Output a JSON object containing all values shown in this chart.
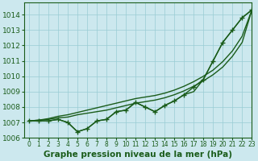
{
  "xlabel": "Graphe pression niveau de la mer (hPa)",
  "background_color": "#cce8ee",
  "grid_color": "#99ccd4",
  "line_color": "#1a5c1a",
  "xlim": [
    -0.5,
    23
  ],
  "ylim": [
    1006.0,
    1014.8
  ],
  "xticks": [
    0,
    1,
    2,
    3,
    4,
    5,
    6,
    7,
    8,
    9,
    10,
    11,
    12,
    13,
    14,
    15,
    16,
    17,
    18,
    19,
    20,
    21,
    22,
    23
  ],
  "yticks": [
    1006,
    1007,
    1008,
    1009,
    1010,
    1011,
    1012,
    1013,
    1014
  ],
  "series": [
    [
      1007.1,
      1007.1,
      1007.1,
      1007.2,
      1007.0,
      1006.4,
      1006.6,
      1007.1,
      1007.2,
      1007.7,
      1007.8,
      1008.3,
      1008.0,
      1007.7,
      1008.1,
      1008.4,
      1008.8,
      1009.0,
      1009.8,
      1011.0,
      1012.2,
      1013.0,
      1013.8,
      1014.3
    ],
    [
      1007.1,
      1007.15,
      1007.2,
      1007.3,
      1007.35,
      1007.5,
      1007.6,
      1007.7,
      1007.8,
      1007.95,
      1008.1,
      1008.25,
      1008.35,
      1008.45,
      1008.6,
      1008.8,
      1009.05,
      1009.35,
      1009.7,
      1010.1,
      1010.6,
      1011.3,
      1012.2,
      1014.3
    ],
    [
      1007.1,
      1007.15,
      1007.25,
      1007.4,
      1007.5,
      1007.65,
      1007.8,
      1007.95,
      1008.1,
      1008.25,
      1008.4,
      1008.55,
      1008.65,
      1008.75,
      1008.9,
      1009.1,
      1009.35,
      1009.65,
      1010.0,
      1010.4,
      1010.95,
      1011.65,
      1012.6,
      1014.3
    ],
    [
      1007.1,
      1007.1,
      1007.1,
      1007.2,
      1007.0,
      1006.4,
      1006.6,
      1007.1,
      1007.2,
      1007.7,
      1007.8,
      1008.3,
      1008.0,
      1007.7,
      1008.1,
      1008.4,
      1008.8,
      1009.3,
      1009.8,
      1011.0,
      1012.2,
      1013.0,
      1013.8,
      1014.3
    ]
  ],
  "has_markers": [
    false,
    false,
    false,
    true
  ],
  "marker": "+",
  "marker_size": 4,
  "linewidth": 1.0,
  "xlabel_fontsize": 7.5,
  "ytick_fontsize": 6.5,
  "xtick_fontsize": 5.5
}
